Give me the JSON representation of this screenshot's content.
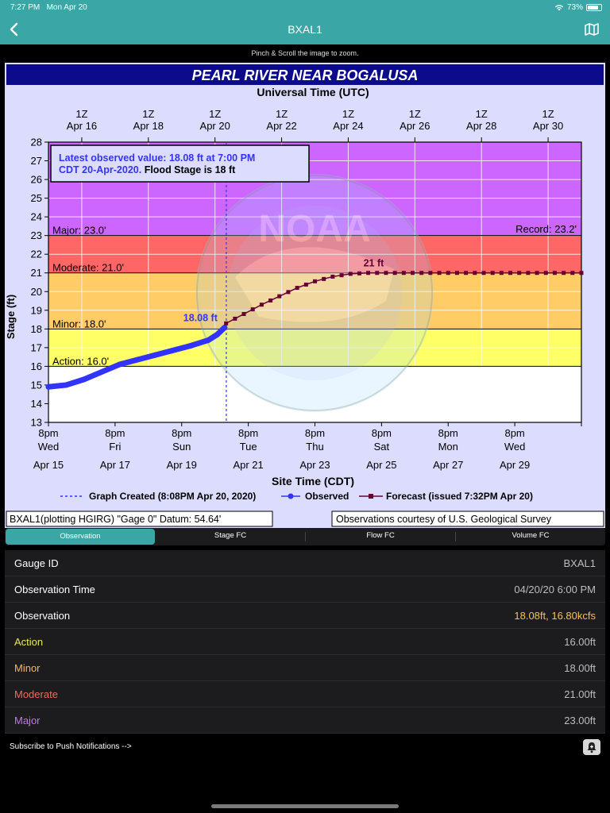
{
  "status": {
    "time": "7:27 PM",
    "date": "Mon Apr 20",
    "battery": "73%",
    "battery_level": 0.73
  },
  "nav": {
    "title": "BXAL1"
  },
  "hint": "Pinch & Scroll the image to zoom.",
  "colors": {
    "accent": "#3aa6a6",
    "observed": "#3333ff",
    "forecast": "#660033",
    "major": "#cc66ff",
    "moderate": "#ff6666",
    "minor": "#ffcc66",
    "action": "#ffff66",
    "action_label": "#e8e85a",
    "minor_label": "#f3b860",
    "moderate_label": "#ef6b5e",
    "major_label": "#c277e6",
    "observation_value": "#f6c24b"
  },
  "hydrograph": {
    "title": "PEARL RIVER NEAR BOGALUSA",
    "utc_title": "Universal Time (UTC)",
    "utc_ticks": [
      {
        "l1": "1Z",
        "l2": "Apr 16"
      },
      {
        "l1": "1Z",
        "l2": "Apr 18"
      },
      {
        "l1": "1Z",
        "l2": "Apr 20"
      },
      {
        "l1": "1Z",
        "l2": "Apr 22"
      },
      {
        "l1": "1Z",
        "l2": "Apr 24"
      },
      {
        "l1": "1Z",
        "l2": "Apr 26"
      },
      {
        "l1": "1Z",
        "l2": "Apr 28"
      },
      {
        "l1": "1Z",
        "l2": "Apr 30"
      }
    ],
    "local_ticks": [
      {
        "l1": "8pm",
        "l2": "Wed",
        "l3": "Apr 15"
      },
      {
        "l1": "8pm",
        "l2": "Fri",
        "l3": "Apr 17"
      },
      {
        "l1": "8pm",
        "l2": "Sun",
        "l3": "Apr 19"
      },
      {
        "l1": "8pm",
        "l2": "Tue",
        "l3": "Apr 21"
      },
      {
        "l1": "8pm",
        "l2": "Thu",
        "l3": "Apr 23"
      },
      {
        "l1": "8pm",
        "l2": "Sat",
        "l3": "Apr 25"
      },
      {
        "l1": "8pm",
        "l2": "Mon",
        "l3": "Apr 27"
      },
      {
        "l1": "8pm",
        "l2": "Wed",
        "l3": "Apr 29"
      }
    ],
    "site_title": "Site Time (CDT)",
    "ylabel": "Stage (ft)",
    "yticks": [
      "13",
      "14",
      "15",
      "16",
      "17",
      "18",
      "19",
      "20",
      "21",
      "22",
      "23",
      "24",
      "25",
      "26",
      "27",
      "28"
    ],
    "stage_labels": {
      "major": "Major: 23.0'",
      "moderate": "Moderate: 21.0'",
      "minor": "Minor: 18.0'",
      "action": "Action: 16.0'",
      "record": "Record: 23.2'"
    },
    "latest_box": {
      "line1": "Latest observed value: 18.08 ft at 7:00 PM",
      "line2_blue": "CDT 20-Apr-2020.",
      "line2_black": "Flood Stage is 18 ft"
    },
    "obs_label": "18.08 ft",
    "fc_label": "21 ft",
    "legend": {
      "created": "Graph Created (8:08PM Apr 20, 2020)",
      "observed": "Observed",
      "forecast": "Forecast (issued 7:32PM Apr 20)"
    },
    "footer_left": "BXAL1(plotting HGIRG) \"Gage 0\" Datum: 54.64'",
    "footer_right": "Observations courtesy of U.S. Geological Survey"
  },
  "chart_data": {
    "type": "line",
    "title": "PEARL RIVER NEAR BOGALUSA",
    "xlabel": "Site Time (CDT)",
    "ylabel": "Stage (ft)",
    "ylim": [
      13,
      28
    ],
    "xlim": [
      "2020-04-15 20:00",
      "2020-04-30 20:00"
    ],
    "graph_created": "2020-04-20 20:08",
    "grid": true,
    "flood_categories": {
      "action": 16.0,
      "minor": 18.0,
      "moderate": 21.0,
      "major": 23.0,
      "record": 23.2
    },
    "series": [
      {
        "name": "Observed",
        "x": [
          "2020-04-15 20:00",
          "2020-04-16 08:00",
          "2020-04-16 20:00",
          "2020-04-17 08:00",
          "2020-04-17 20:00",
          "2020-04-18 08:00",
          "2020-04-18 20:00",
          "2020-04-19 08:00",
          "2020-04-19 20:00",
          "2020-04-20 08:00",
          "2020-04-20 14:00",
          "2020-04-20 19:00"
        ],
        "y": [
          14.9,
          15.0,
          15.3,
          15.7,
          16.1,
          16.35,
          16.6,
          16.85,
          17.1,
          17.4,
          17.7,
          18.08
        ]
      },
      {
        "name": "Forecast",
        "x": [
          "2020-04-20 20:00",
          "2020-04-21 08:00",
          "2020-04-21 20:00",
          "2020-04-22 08:00",
          "2020-04-22 20:00",
          "2020-04-23 08:00",
          "2020-04-23 20:00",
          "2020-04-24 08:00",
          "2020-04-24 20:00",
          "2020-04-25 08:00",
          "2020-04-26 20:00",
          "2020-04-28 20:00",
          "2020-04-30 20:00"
        ],
        "y": [
          18.3,
          18.8,
          19.3,
          19.75,
          20.2,
          20.55,
          20.8,
          20.95,
          21.0,
          21.0,
          21.0,
          21.0,
          21.0
        ]
      }
    ]
  },
  "tabs": [
    {
      "label": "Observation",
      "active": true
    },
    {
      "label": "Stage FC",
      "active": false
    },
    {
      "label": "Flow FC",
      "active": false
    },
    {
      "label": "Volume FC",
      "active": false
    }
  ],
  "table": [
    {
      "key": "gauge_id",
      "label": "Gauge ID",
      "value": "BXAL1",
      "label_color": "#ffffff",
      "value_color": "#bdbdbd"
    },
    {
      "key": "observation_time",
      "label": "Observation Time",
      "value": "04/20/20 6:00 PM",
      "label_color": "#ffffff",
      "value_color": "#bdbdbd"
    },
    {
      "key": "observation",
      "label": "Observation",
      "value": "18.08ft, 16.80kcfs",
      "label_color": "#ffffff",
      "value_color": "#f6c24b"
    },
    {
      "key": "action",
      "label": "Action",
      "value": "16.00ft",
      "label_color": "#e8e85a",
      "value_color": "#bdbdbd"
    },
    {
      "key": "minor",
      "label": "Minor",
      "value": "18.00ft",
      "label_color": "#f3b860",
      "value_color": "#bdbdbd"
    },
    {
      "key": "moderate",
      "label": "Moderate",
      "value": "21.00ft",
      "label_color": "#ef6b5e",
      "value_color": "#bdbdbd"
    },
    {
      "key": "major",
      "label": "Major",
      "value": "23.00ft",
      "label_color": "#c277e6",
      "value_color": "#bdbdbd"
    }
  ],
  "subscribe": {
    "label": "Subscribe to Push Notifications -->"
  }
}
